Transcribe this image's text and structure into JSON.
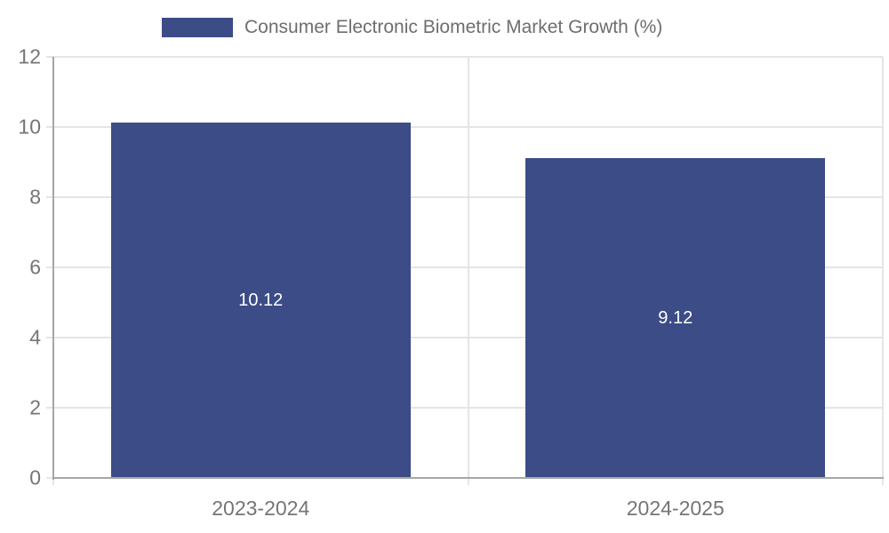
{
  "chart_data": {
    "type": "bar",
    "title": "",
    "legend_label": "Consumer Electronic Biometric Market Growth (%)",
    "legend_position": "upper left (above plot)",
    "categories": [
      "2023-2024",
      "2024-2025"
    ],
    "values": [
      10.12,
      9.12
    ],
    "value_labels": [
      "10.12",
      "9.12"
    ],
    "xlabel": "",
    "ylabel": "",
    "ylim": [
      0,
      12
    ],
    "yticks": [
      0,
      2,
      4,
      6,
      8,
      10,
      12
    ],
    "grid": true,
    "colors": {
      "bar": "#3b4c87",
      "grid": "#e5e5e5",
      "axis": "#a6a6a6",
      "tick_label": "#757575",
      "legend_text": "#6e6e6e",
      "value_label": "#ffffff",
      "background": "#ffffff"
    }
  }
}
